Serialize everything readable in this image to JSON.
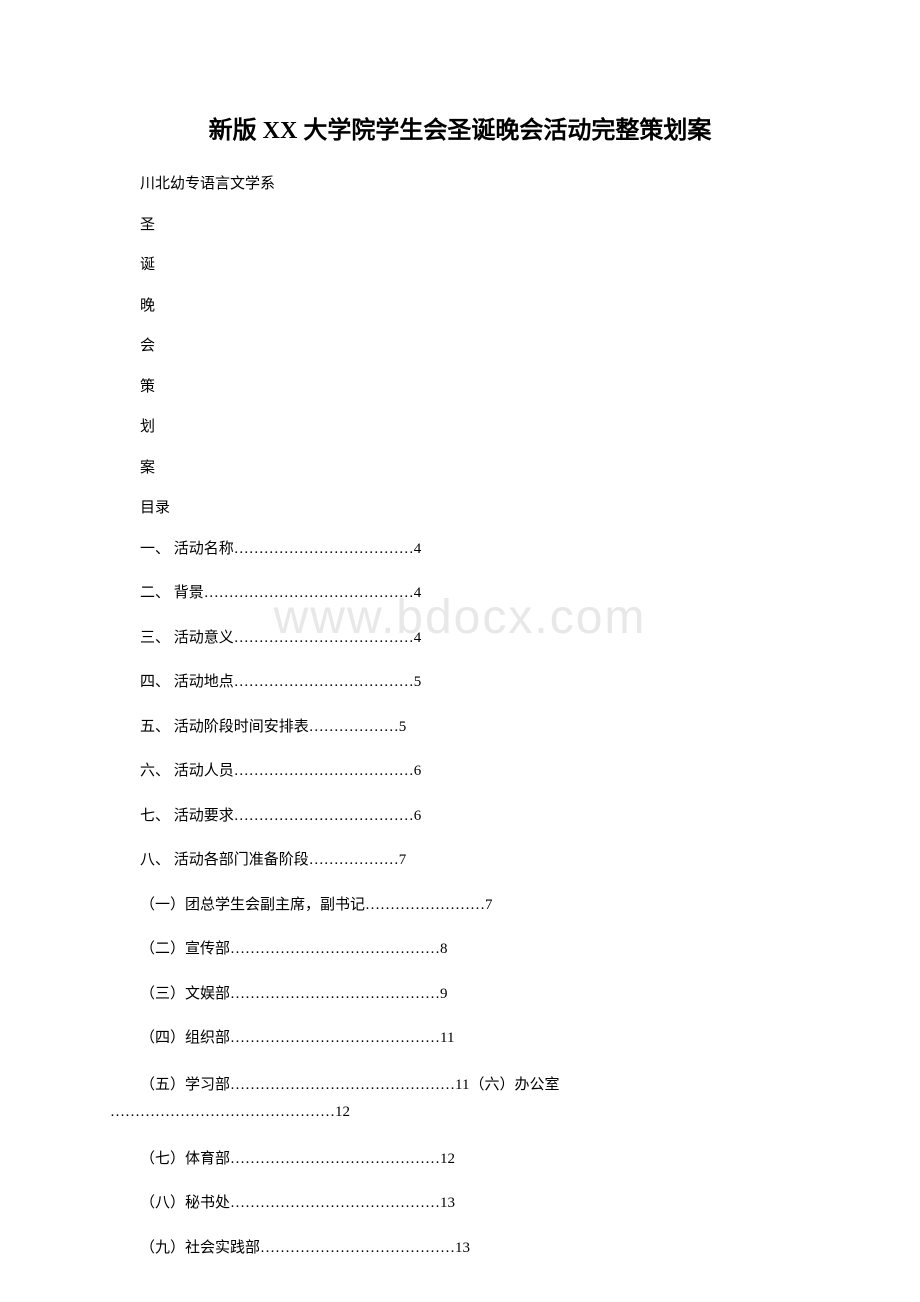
{
  "title": "新版 XX 大学院学生会圣诞晚会活动完整策划案",
  "subtitle": "川北幼专语言文学系",
  "vertical_chars": [
    "圣",
    "诞",
    "晚",
    "会",
    "策",
    "划",
    "案"
  ],
  "toc_heading": "目录",
  "toc_items": [
    {
      "num": "一、",
      "label": "活动名称",
      "dots": "………………………………",
      "page": "4"
    },
    {
      "num": "二、",
      "label": "背景",
      "dots": "……………………………………",
      "page": "4"
    },
    {
      "num": "三、",
      "label": "活动意义",
      "dots": "………………………………",
      "page": "4"
    },
    {
      "num": "四、",
      "label": "活动地点",
      "dots": "………………………………",
      "page": "5"
    },
    {
      "num": "五、",
      "label": "活动阶段时间安排表",
      "dots": "………………",
      "page": "5"
    },
    {
      "num": "六、",
      "label": "活动人员",
      "dots": "………………………………",
      "page": "6"
    },
    {
      "num": "七、",
      "label": "活动要求",
      "dots": "………………………………",
      "page": "6"
    },
    {
      "num": "八、",
      "label": "活动各部门准备阶段",
      "dots": "………………",
      "page": "7"
    }
  ],
  "toc_subitems": [
    {
      "num": "（一）",
      "label": "团总学生会副主席，副书记",
      "dots": "……………………",
      "page": "7"
    },
    {
      "num": "（二）",
      "label": "宣传部",
      "dots": "……………………………………",
      "page": "8"
    },
    {
      "num": "（三）",
      "label": "文娱部",
      "dots": "……………………………………",
      "page": "9"
    },
    {
      "num": "（四）",
      "label": "组织部",
      "dots": "……………………………………",
      "page": "11"
    }
  ],
  "toc_combined": {
    "line1": "（五）学习部………………………………………11（六）办公室",
    "line2": "………………………………………12"
  },
  "toc_subitems2": [
    {
      "num": "（七）",
      "label": "体育部",
      "dots": "……………………………………",
      "page": "12"
    },
    {
      "num": "（八）",
      "label": "秘书处",
      "dots": "……………………………………",
      "page": "13"
    },
    {
      "num": "（九）",
      "label": "社会实践部",
      "dots": "…………………………………",
      "page": "13"
    }
  ],
  "watermark": "www.bdocx.com",
  "colors": {
    "background": "#ffffff",
    "text": "#000000",
    "watermark": "#e8e8e8"
  }
}
